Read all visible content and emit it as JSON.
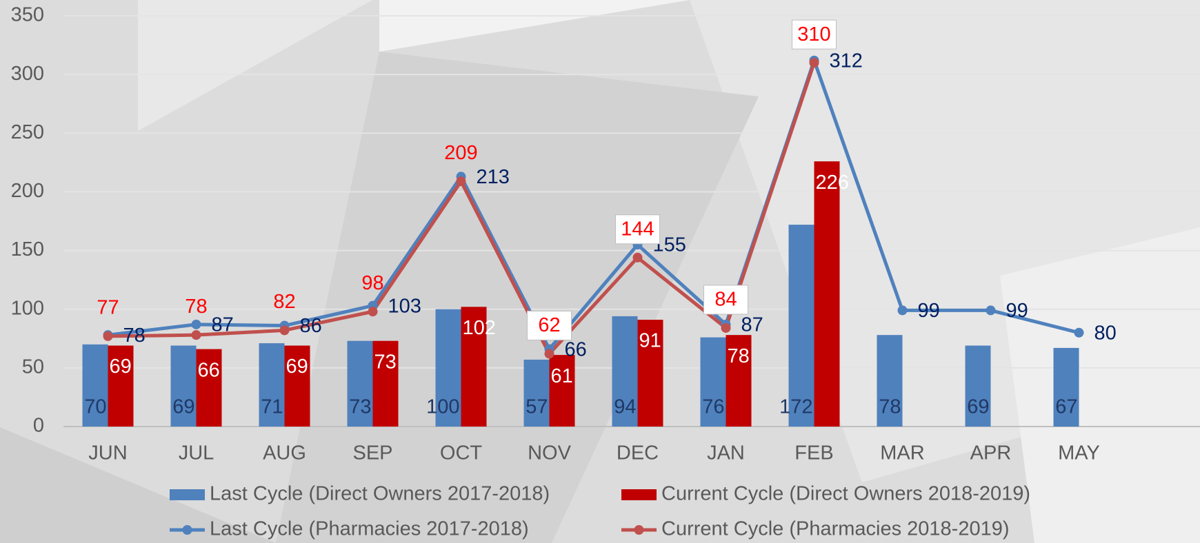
{
  "chart_data": {
    "type": "bar",
    "categories": [
      "JUN",
      "JUL",
      "AUG",
      "SEP",
      "OCT",
      "NOV",
      "DEC",
      "JAN",
      "FEB",
      "MAR",
      "APR",
      "MAY"
    ],
    "series": [
      {
        "name": "Last Cycle (Direct Owners 2017-2018)",
        "type": "bar",
        "color": "#4f81bd",
        "values": [
          70,
          69,
          71,
          73,
          100,
          57,
          94,
          76,
          172,
          78,
          69,
          67
        ]
      },
      {
        "name": "Current Cycle (Direct Owners 2018-2019)",
        "type": "bar",
        "color": "#c00000",
        "values": [
          69,
          66,
          69,
          73,
          102,
          61,
          91,
          78,
          226,
          null,
          null,
          null
        ]
      },
      {
        "name": "Last Cycle (Pharmacies 2017-2018)",
        "type": "line",
        "color": "#4f81bd",
        "values": [
          78,
          87,
          86,
          103,
          213,
          66,
          155,
          87,
          312,
          99,
          99,
          80
        ]
      },
      {
        "name": "Current Cycle (Pharmacies 2018-2019)",
        "type": "line",
        "color": "#c0504d",
        "values": [
          77,
          78,
          82,
          98,
          209,
          62,
          144,
          84,
          310,
          null,
          null,
          null
        ]
      }
    ],
    "ylim": [
      0,
      350
    ],
    "yticks": [
      0,
      50,
      100,
      150,
      200,
      250,
      300,
      350
    ],
    "grid": true
  }
}
